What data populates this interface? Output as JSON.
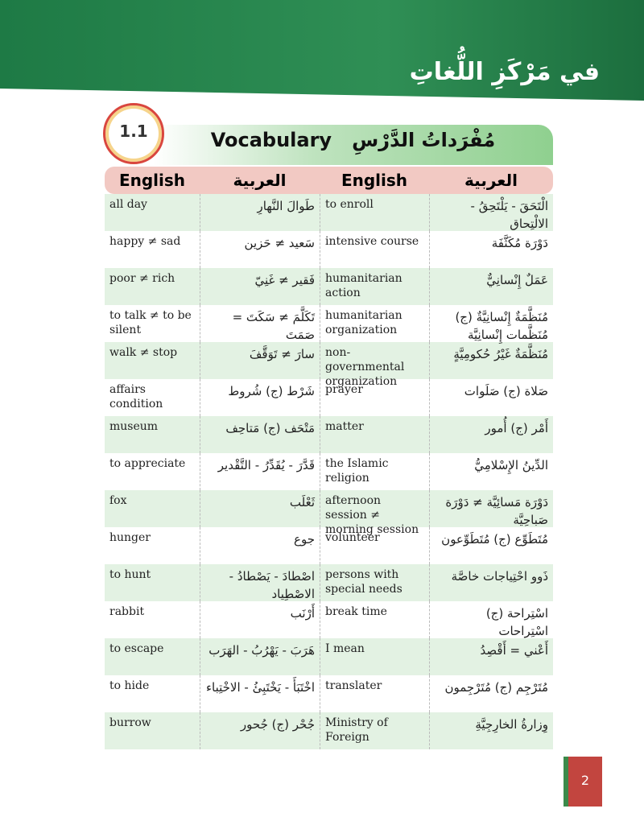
{
  "header": {
    "title": "في مَرْكَزِ اللُّغاتِ"
  },
  "badge": "1.1",
  "section": {
    "title_en": "Vocabulary",
    "title_ar": "مُفْرَداتُ الدَّرْسِ"
  },
  "table": {
    "columns": [
      "English",
      "العربية",
      "English",
      "العربية"
    ],
    "rows": [
      [
        "all day",
        "طَوالَ النَّهارِ",
        "to enroll",
        "الْتَحَقَ - يَلْتَحِقُ - الالْتِحاق"
      ],
      [
        "happy ≠ sad",
        "سَعيد ≠ حَزين",
        "intensive course",
        "دَوْرَة مُكَثَّفَة"
      ],
      [
        "poor ≠ rich",
        "فَقير ≠ غَنِيّ",
        "humanitarian action",
        "عَمَلٌ إِنْسانِيٌّ"
      ],
      [
        "to talk ≠ to be silent",
        "تَكَلَّمَ ≠ سَكَتَ = صَمَتَ",
        "humanitarian organization",
        "مُنَظَّمَةٌ إِنْسانِيَّةٌ (ج) مُنَظَّمات إِنْسانِيَّة"
      ],
      [
        "walk ≠ stop",
        "سارَ ≠ تَوَقَّفَ",
        "non-governmental organization",
        "مُنَظَّمَةٌ غَيْرُ حُكومِيَّةٍ"
      ],
      [
        "affairs condition",
        "شَرْط (ج) شُروط",
        "prayer",
        "صَلاة (ج) صَلَوات"
      ],
      [
        "museum",
        "مَتْحَف (ج) مَتاحِف",
        "matter",
        "أَمْر (ج) أُمور"
      ],
      [
        "to appreciate",
        "قَدَّرَ - يُقَدِّرُ - التَّقْدير",
        "the Islamic religion",
        "الدِّينُ الإِسْلامِيُّ"
      ],
      [
        "fox",
        "ثَعْلَب",
        "afternoon session ≠ morning session",
        "دَوْرَة مَسائِيَّة ≠ دَوْرَة صَباحِيَّة"
      ],
      [
        "hunger",
        "جوع",
        "volunteer",
        "مُتَطَوِّع (ج) مُتَطَوِّعون"
      ],
      [
        "to hunt",
        "اصْطادَ - يَصْطادُ - الاصْطِياد",
        "persons with special needs",
        "ذَوو احْتِياجات خاصَّة"
      ],
      [
        "rabbit",
        "أَرْنَب",
        "break time",
        "اسْتِراحة (ج) اسْتِراحات"
      ],
      [
        "to escape",
        "هَرَبَ - يَهْرُبُ - الهَرَب",
        "I mean",
        "أَعْني = أَقْصِدُ"
      ],
      [
        "to hide",
        "اخْتَبَأَ - يَخْتَبِئُ - الاخْتِباء",
        "translater",
        "مُتَرْجِم (ج) مُتَرْجِمون"
      ],
      [
        "burrow",
        "جُحْر (ج) جُحور",
        "Ministry of Foreign",
        "وِزارةُ الخارِجِيَّةِ"
      ]
    ]
  },
  "page_number": "2"
}
